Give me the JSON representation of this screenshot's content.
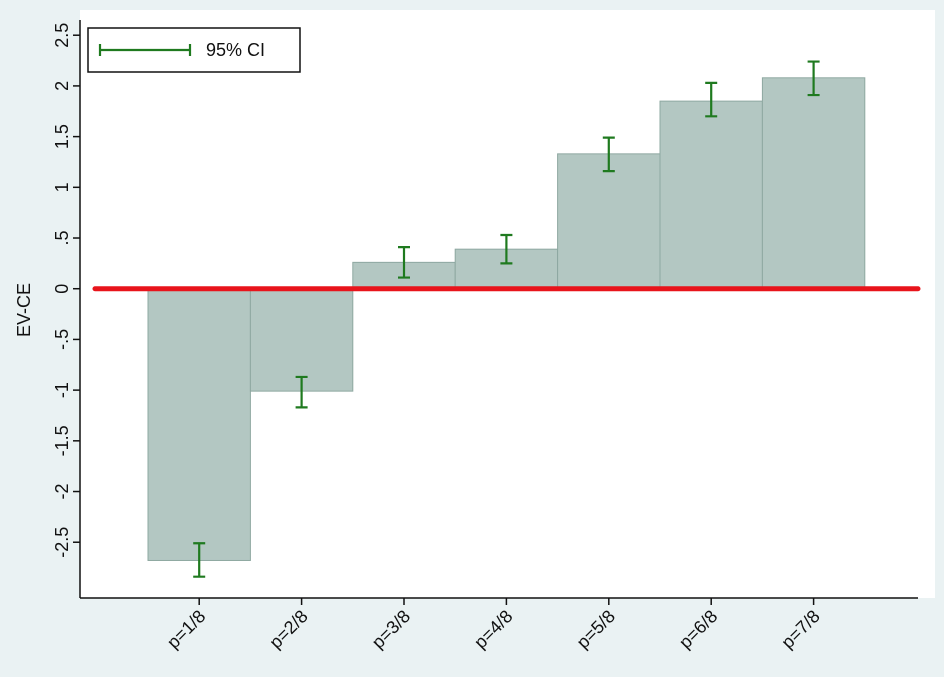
{
  "chart_data": {
    "type": "bar",
    "ylabel": "EV-CE",
    "categories": [
      "p=1/8",
      "p=2/8",
      "p=3/8",
      "p=4/8",
      "p=5/8",
      "p=6/8",
      "p=7/8"
    ],
    "values": [
      -2.68,
      -1.01,
      0.26,
      0.39,
      1.33,
      1.85,
      2.08
    ],
    "color": "#b3c7c2",
    "error_bars": {
      "name": "95% CI",
      "color": "#1f7a1f",
      "low": [
        -2.84,
        -1.17,
        0.11,
        0.25,
        1.16,
        1.7,
        1.91
      ],
      "high": [
        -2.51,
        -0.87,
        0.41,
        0.53,
        1.49,
        2.03,
        2.24
      ]
    },
    "reference_line": {
      "value": 0,
      "color": "#e8141b"
    },
    "ylim": [
      -3.05,
      2.65
    ],
    "yticks": [
      2.5,
      2,
      1.5,
      1,
      {
        "value": 0.5,
        "label": ".5"
      },
      0,
      {
        "value": -0.5,
        "label": "-.5"
      },
      -1,
      -1.5,
      -2,
      -2.5
    ],
    "legend": "top-left"
  }
}
